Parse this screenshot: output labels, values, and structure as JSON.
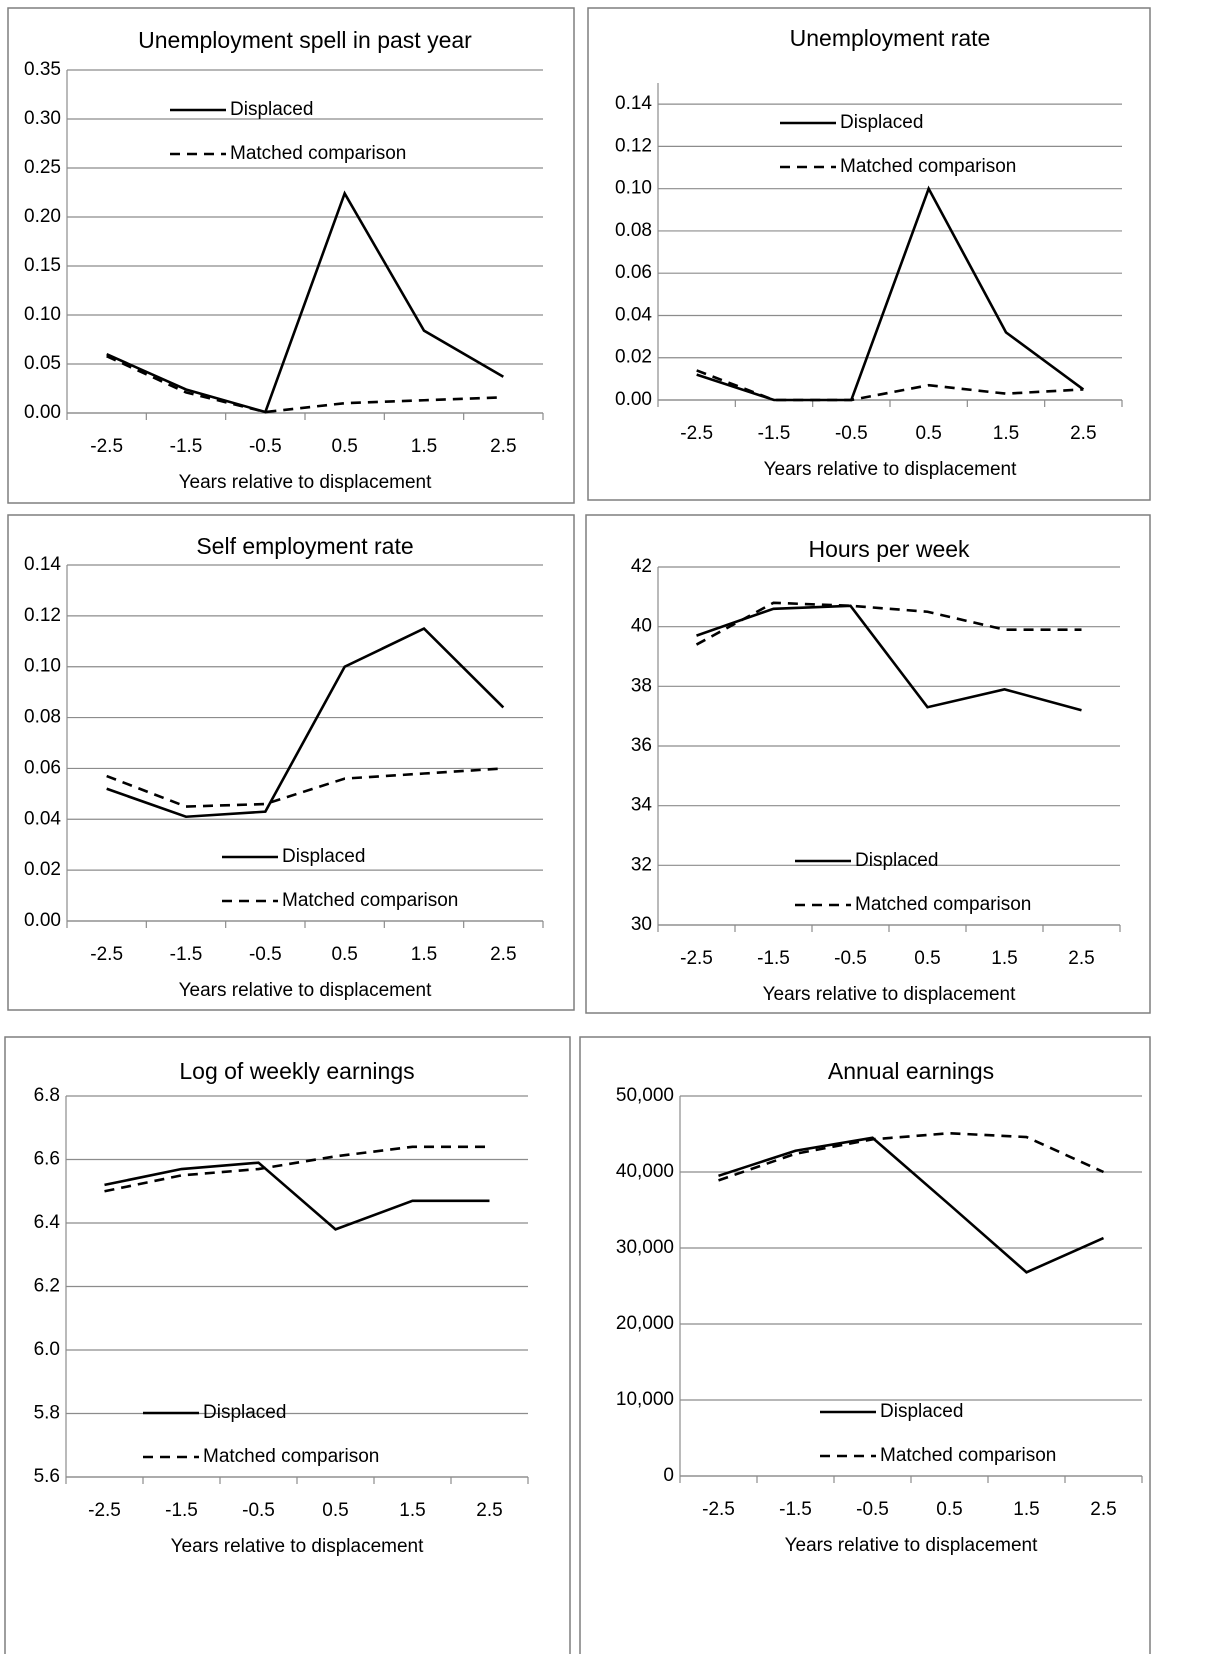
{
  "chart_data": [
    {
      "type": "line",
      "title": "Unemployment spell in past year",
      "x_label": "Years relative to displacement",
      "categories": [
        "-2.5",
        "-1.5",
        "-0.5",
        "0.5",
        "1.5",
        "2.5"
      ],
      "series": [
        {
          "name": "Displaced",
          "color": "#000000",
          "style": "solid",
          "values": [
            0.06,
            0.024,
            0.001,
            0.224,
            0.084,
            0.037
          ]
        },
        {
          "name": "Matched comparison",
          "color": "#000000",
          "style": "dashed",
          "values": [
            0.058,
            0.021,
            0.001,
            0.01,
            0.013,
            0.016
          ]
        }
      ],
      "ylim": [
        0,
        0.35
      ],
      "yticks": [
        {
          "value": 0,
          "label": "0.00"
        },
        {
          "value": 0.05,
          "label": "0.05"
        },
        {
          "value": 0.1,
          "label": "0.10"
        },
        {
          "value": 0.15,
          "label": "0.15"
        },
        {
          "value": 0.2,
          "label": "0.20"
        },
        {
          "value": 0.25,
          "label": "0.25"
        },
        {
          "value": 0.3,
          "label": "0.30"
        },
        {
          "value": 0.35,
          "label": "0.35"
        }
      ],
      "grid": true,
      "legend": "top"
    },
    {
      "type": "line",
      "title": "Unemployment rate",
      "x_label": "Years relative to displacement",
      "categories": [
        "-2.5",
        "-1.5",
        "-0.5",
        "0.5",
        "1.5",
        "2.5"
      ],
      "series": [
        {
          "name": "Displaced",
          "color": "#000000",
          "style": "solid",
          "values": [
            0.012,
            0,
            0,
            0.1,
            0.032,
            0.005
          ]
        },
        {
          "name": "Matched comparison",
          "color": "#000000",
          "style": "dashed",
          "values": [
            0.014,
            0,
            0,
            0.007,
            0.003,
            0.005
          ]
        }
      ],
      "ylim": [
        0,
        0.15
      ],
      "yticks": [
        {
          "value": 0,
          "label": "0.00"
        },
        {
          "value": 0.02,
          "label": "0.02"
        },
        {
          "value": 0.04,
          "label": "0.04"
        },
        {
          "value": 0.06,
          "label": "0.06"
        },
        {
          "value": 0.08,
          "label": "0.08"
        },
        {
          "value": 0.1,
          "label": "0.10"
        },
        {
          "value": 0.12,
          "label": "0.12"
        },
        {
          "value": 0.14,
          "label": "0.14"
        }
      ],
      "grid": true,
      "legend": "top"
    },
    {
      "type": "line",
      "title": "Self employment rate",
      "x_label": "Years relative to displacement",
      "categories": [
        "-2.5",
        "-1.5",
        "-0.5",
        "0.5",
        "1.5",
        "2.5"
      ],
      "series": [
        {
          "name": "Displaced",
          "color": "#000000",
          "style": "solid",
          "values": [
            0.052,
            0.041,
            0.043,
            0.1,
            0.115,
            0.084
          ]
        },
        {
          "name": "Matched comparison",
          "color": "#000000",
          "style": "dashed",
          "values": [
            0.057,
            0.045,
            0.046,
            0.056,
            0.058,
            0.06
          ]
        }
      ],
      "ylim": [
        0,
        0.14
      ],
      "yticks": [
        {
          "value": 0,
          "label": "0.00"
        },
        {
          "value": 0.02,
          "label": "0.02"
        },
        {
          "value": 0.04,
          "label": "0.04"
        },
        {
          "value": 0.06,
          "label": "0.06"
        },
        {
          "value": 0.08,
          "label": "0.08"
        },
        {
          "value": 0.1,
          "label": "0.10"
        },
        {
          "value": 0.12,
          "label": "0.12"
        },
        {
          "value": 0.14,
          "label": "0.14"
        }
      ],
      "grid": true,
      "legend": "bottom"
    },
    {
      "type": "line",
      "title": "Hours per week",
      "x_label": "Years relative to displacement",
      "categories": [
        "-2.5",
        "-1.5",
        "-0.5",
        "0.5",
        "1.5",
        "2.5"
      ],
      "series": [
        {
          "name": "Displaced",
          "color": "#000000",
          "style": "solid",
          "values": [
            39.7,
            40.6,
            40.7,
            37.3,
            37.9,
            37.2
          ]
        },
        {
          "name": "Matched comparison",
          "color": "#000000",
          "style": "dashed",
          "values": [
            39.4,
            40.8,
            40.7,
            40.5,
            39.9,
            39.9
          ]
        }
      ],
      "ylim": [
        30,
        42
      ],
      "yticks": [
        30,
        32,
        34,
        36,
        38,
        40,
        42
      ],
      "grid": true,
      "legend": "bottom"
    },
    {
      "type": "line",
      "title": "Log of weekly earnings",
      "x_label": "Years relative to displacement",
      "categories": [
        "-2.5",
        "-1.5",
        "-0.5",
        "0.5",
        "1.5",
        "2.5"
      ],
      "series": [
        {
          "name": "Displaced",
          "color": "#000000",
          "style": "solid",
          "values": [
            6.52,
            6.57,
            6.59,
            6.38,
            6.47,
            6.47
          ]
        },
        {
          "name": "Matched comparison",
          "color": "#000000",
          "style": "dashed",
          "values": [
            6.5,
            6.55,
            6.57,
            6.61,
            6.64,
            6.64
          ]
        }
      ],
      "ylim": [
        5.6,
        6.8
      ],
      "yticks": [
        5.6,
        5.8,
        {
          "value": 6,
          "label": "6.0"
        },
        6.2,
        6.4,
        6.6,
        6.8
      ],
      "grid": true,
      "legend": "bottom"
    },
    {
      "type": "line",
      "title": "Annual earnings",
      "x_label": "Years relative to displacement",
      "categories": [
        "-2.5",
        "-1.5",
        "-0.5",
        "0.5",
        "1.5",
        "2.5"
      ],
      "series": [
        {
          "name": "Displaced",
          "color": "#000000",
          "style": "solid",
          "values": [
            39500,
            42800,
            44500,
            35700,
            26800,
            31300
          ]
        },
        {
          "name": "Matched comparison",
          "color": "#000000",
          "style": "dashed",
          "values": [
            38900,
            42400,
            44300,
            45100,
            44600,
            40000
          ]
        }
      ],
      "ylim": [
        0,
        50000
      ],
      "yticks": [
        0,
        {
          "value": 10000,
          "label": "10,000"
        },
        {
          "value": 20000,
          "label": "20,000"
        },
        {
          "value": 30000,
          "label": "30,000"
        },
        {
          "value": 40000,
          "label": "40,000"
        },
        {
          "value": 50000,
          "label": "50,000"
        }
      ],
      "grid": true,
      "legend": "bottom"
    }
  ]
}
